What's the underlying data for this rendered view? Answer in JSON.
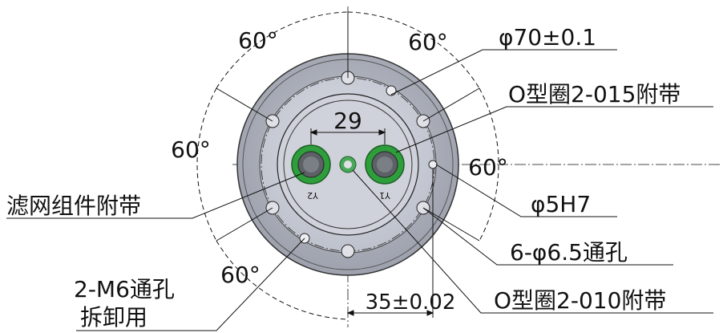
{
  "drawing": {
    "angle_labels": [
      {
        "id": "upper-left",
        "text": "60°"
      },
      {
        "id": "upper-right",
        "text": "60°"
      },
      {
        "id": "left",
        "text": "60°"
      },
      {
        "id": "right",
        "text": "60°"
      },
      {
        "id": "lower-left",
        "text": "60°"
      }
    ],
    "dim_29": "29",
    "dim_35": "35±0.02",
    "dim_phi70": "φ70±0.1",
    "o_ring_015": "O型圈2-015附带",
    "hole_5h7": "φ5H7",
    "holes_6": "6-φ6.5通孔",
    "o_ring_010": "O型圈2-010附带",
    "filter": "滤网组件附带",
    "m6_line1": "2-M6通孔",
    "m6_line2": "拆卸用",
    "connector_left": "Y2",
    "connector_right": "Y1"
  },
  "colors": {
    "outer_disc": "#a9adb8",
    "inner_face": "#c9ccd6",
    "connector_green": "#2e9e3c",
    "line": "#111111"
  }
}
